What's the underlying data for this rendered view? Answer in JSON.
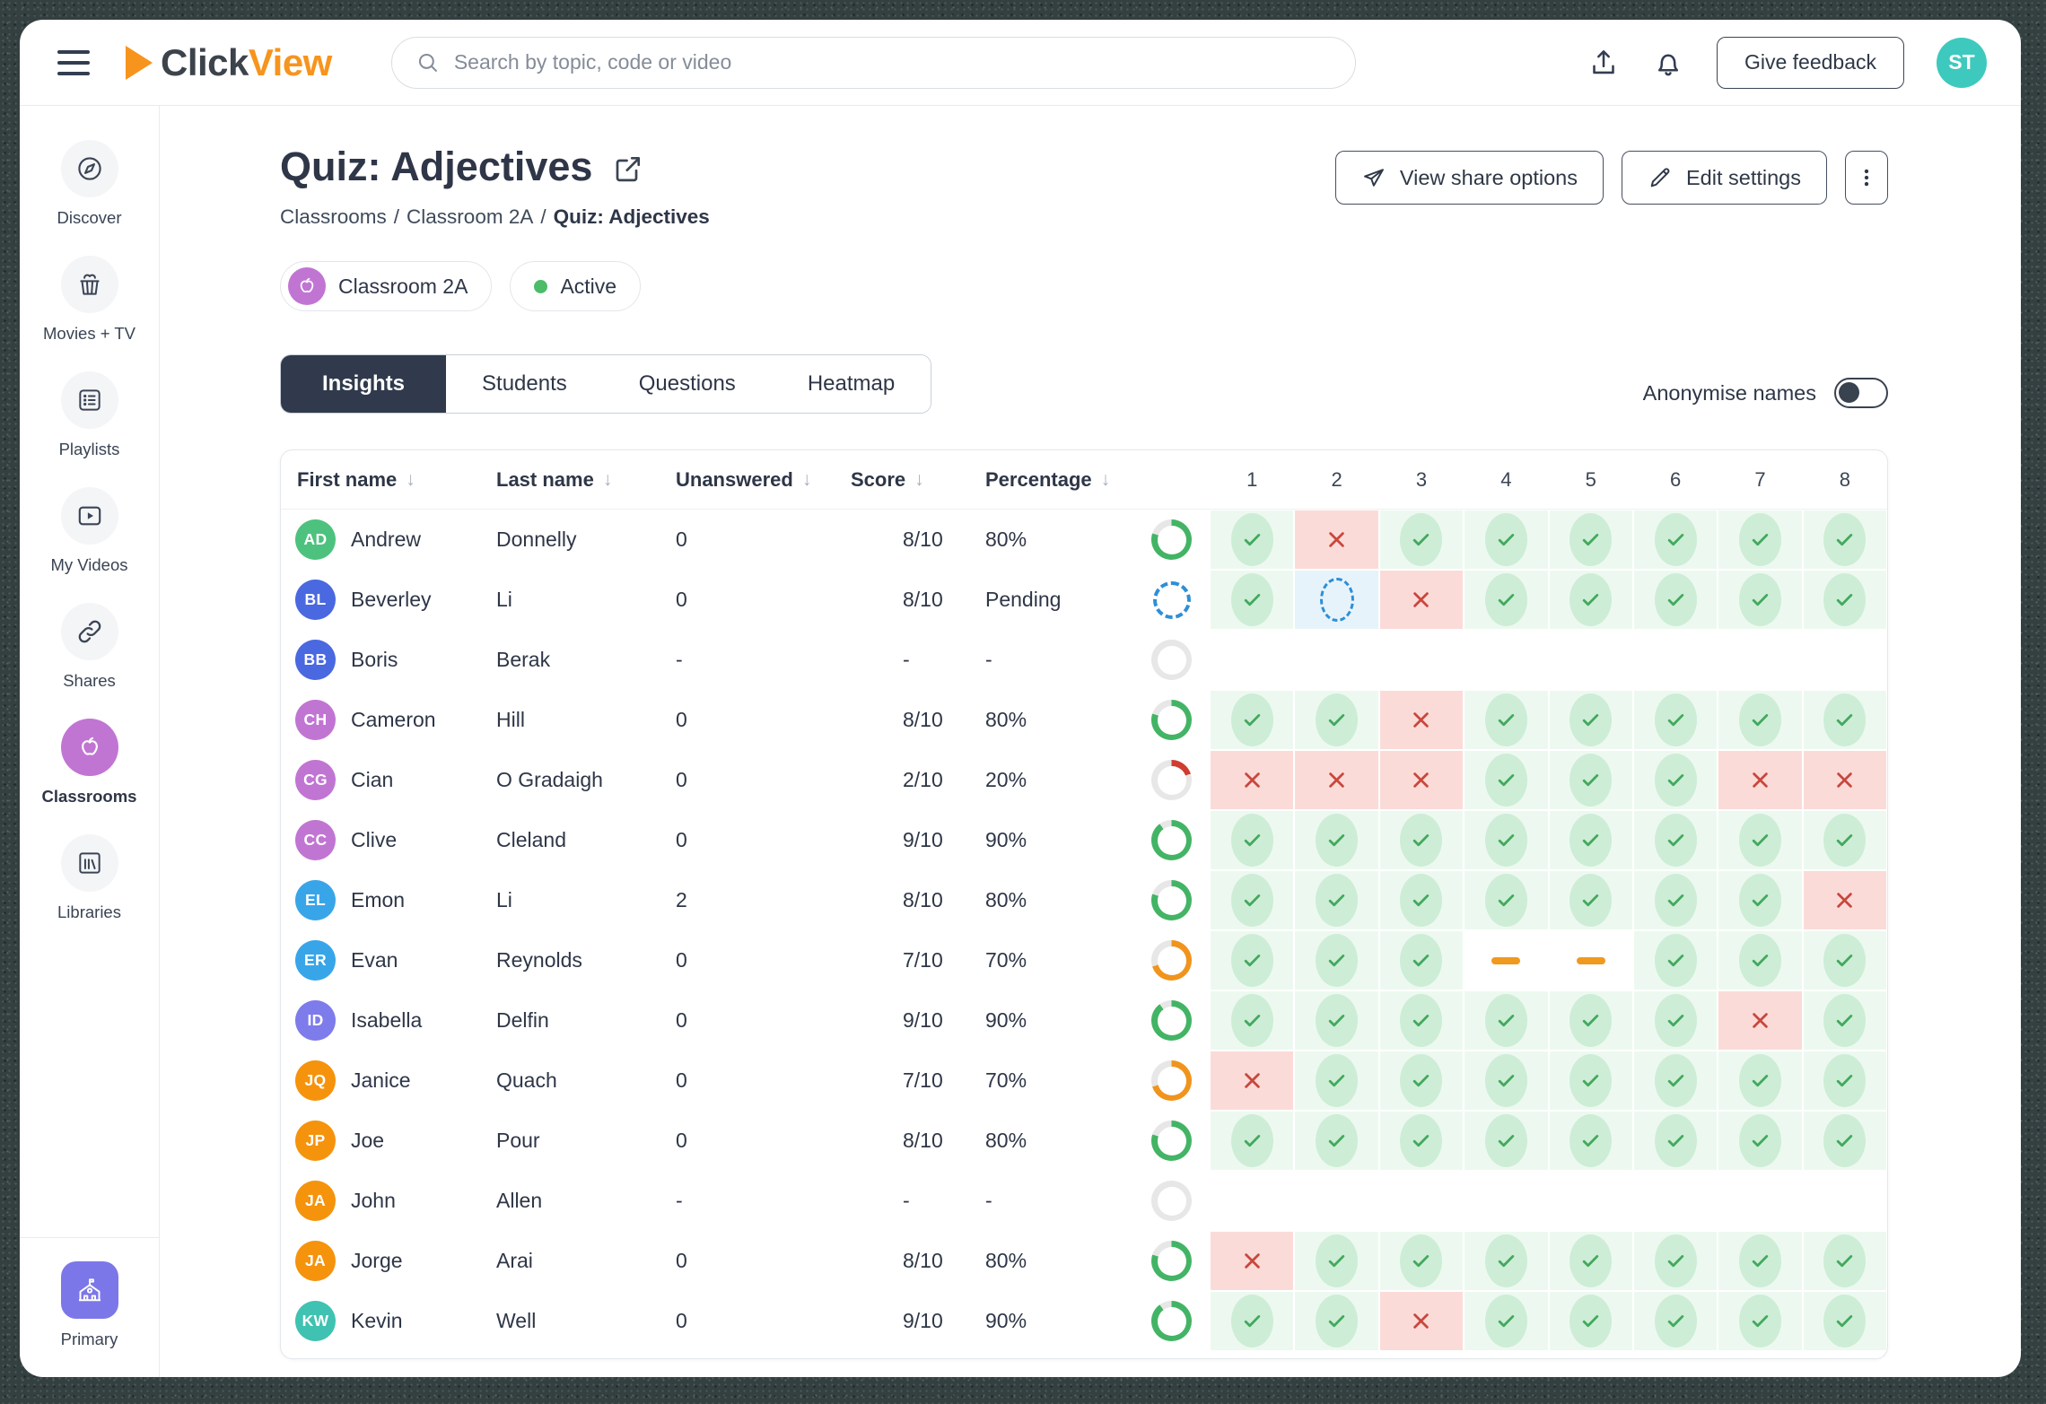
{
  "topbar": {
    "logo_part1": "Click",
    "logo_part2": "View",
    "search_placeholder": "Search by topic, code or video",
    "give_feedback_label": "Give feedback",
    "avatar_initials": "ST"
  },
  "sidebar": {
    "items": [
      {
        "id": "discover",
        "label": "Discover",
        "icon": "compass-icon",
        "active": false
      },
      {
        "id": "movies-tv",
        "label": "Movies + TV",
        "icon": "popcorn-icon",
        "active": false
      },
      {
        "id": "playlists",
        "label": "Playlists",
        "icon": "playlist-icon",
        "active": false
      },
      {
        "id": "my-videos",
        "label": "My Videos",
        "icon": "video-play-icon",
        "active": false
      },
      {
        "id": "shares",
        "label": "Shares",
        "icon": "link-icon",
        "active": false
      },
      {
        "id": "classrooms",
        "label": "Classrooms",
        "icon": "apple-icon",
        "active": true
      },
      {
        "id": "libraries",
        "label": "Libraries",
        "icon": "books-icon",
        "active": false
      }
    ],
    "bottom_label": "Primary"
  },
  "page": {
    "title": "Quiz: Adjectives",
    "breadcrumb": [
      {
        "label": "Classrooms",
        "current": false
      },
      {
        "label": "Classroom 2A",
        "current": false
      },
      {
        "label": "Quiz: Adjectives",
        "current": true
      }
    ],
    "share_button_label": "View share options",
    "edit_button_label": "Edit settings",
    "classroom_chip_label": "Classroom 2A",
    "status_chip_label": "Active",
    "tabs": [
      "Insights",
      "Students",
      "Questions",
      "Heatmap"
    ],
    "active_tab": "Insights",
    "anonymise_label": "Anonymise names",
    "anonymise_on": false
  },
  "table": {
    "columns": [
      "First name",
      "Last name",
      "Unanswered",
      "Score",
      "Percentage"
    ],
    "question_numbers": [
      "1",
      "2",
      "3",
      "4",
      "5",
      "6",
      "7",
      "8"
    ],
    "rows": [
      {
        "initials": "AD",
        "avatar_color": "#4DC27E",
        "first": "Andrew",
        "last": "Donnelly",
        "unanswered": "0",
        "score": "8/10",
        "percentage": "80%",
        "progress": {
          "kind": "ring",
          "pct": 80,
          "color": "#43B465"
        },
        "answers": [
          "correct",
          "incorrect",
          "correct",
          "correct",
          "correct",
          "correct",
          "correct",
          "correct"
        ]
      },
      {
        "initials": "BL",
        "avatar_color": "#4A68E0",
        "first": "Beverley",
        "last": "Li",
        "unanswered": "0",
        "score": "8/10",
        "percentage": "Pending",
        "progress": {
          "kind": "pending"
        },
        "answers": [
          "correct",
          "pending",
          "incorrect",
          "correct",
          "correct",
          "correct",
          "correct",
          "correct"
        ]
      },
      {
        "initials": "BB",
        "avatar_color": "#4A68E0",
        "first": "Boris",
        "last": "Berak",
        "unanswered": "-",
        "score": "-",
        "percentage": "-",
        "progress": {
          "kind": "ring",
          "pct": 0,
          "color": "#43B465"
        },
        "answers": [
          "empty",
          "empty",
          "empty",
          "empty",
          "empty",
          "empty",
          "empty",
          "empty"
        ]
      },
      {
        "initials": "CH",
        "avatar_color": "#C175D3",
        "first": "Cameron",
        "last": "Hill",
        "unanswered": "0",
        "score": "8/10",
        "percentage": "80%",
        "progress": {
          "kind": "ring",
          "pct": 80,
          "color": "#43B465"
        },
        "answers": [
          "correct",
          "correct",
          "incorrect",
          "correct",
          "correct",
          "correct",
          "correct",
          "correct"
        ]
      },
      {
        "initials": "CG",
        "avatar_color": "#C175D3",
        "first": "Cian",
        "last": "O Gradaigh",
        "unanswered": "0",
        "score": "2/10",
        "percentage": "20%",
        "progress": {
          "kind": "ring",
          "pct": 20,
          "color": "#D03C2F"
        },
        "answers": [
          "incorrect",
          "incorrect",
          "incorrect",
          "correct",
          "correct",
          "correct",
          "incorrect",
          "incorrect"
        ]
      },
      {
        "initials": "CC",
        "avatar_color": "#C175D3",
        "first": "Clive",
        "last": "Cleland",
        "unanswered": "0",
        "score": "9/10",
        "percentage": "90%",
        "progress": {
          "kind": "ring",
          "pct": 90,
          "color": "#43B465"
        },
        "answers": [
          "correct",
          "correct",
          "correct",
          "correct",
          "correct",
          "correct",
          "correct",
          "correct"
        ]
      },
      {
        "initials": "EL",
        "avatar_color": "#39A5E9",
        "first": "Emon",
        "last": "Li",
        "unanswered": "2",
        "score": "8/10",
        "percentage": "80%",
        "progress": {
          "kind": "ring",
          "pct": 80,
          "color": "#43B465"
        },
        "answers": [
          "correct",
          "correct",
          "correct",
          "correct",
          "correct",
          "correct",
          "correct",
          "incorrect"
        ]
      },
      {
        "initials": "ER",
        "avatar_color": "#39A5E9",
        "first": "Evan",
        "last": "Reynolds",
        "unanswered": "0",
        "score": "7/10",
        "percentage": "70%",
        "progress": {
          "kind": "ring",
          "pct": 70,
          "color": "#F0941D"
        },
        "answers": [
          "correct",
          "correct",
          "correct",
          "missed",
          "missed",
          "correct",
          "correct",
          "correct"
        ]
      },
      {
        "initials": "ID",
        "avatar_color": "#7E7BEB",
        "first": "Isabella",
        "last": "Delfin",
        "unanswered": "0",
        "score": "9/10",
        "percentage": "90%",
        "progress": {
          "kind": "ring",
          "pct": 90,
          "color": "#43B465"
        },
        "answers": [
          "correct",
          "correct",
          "correct",
          "correct",
          "correct",
          "correct",
          "incorrect",
          "correct"
        ]
      },
      {
        "initials": "JQ",
        "avatar_color": "#F5930D",
        "first": "Janice",
        "last": "Quach",
        "unanswered": "0",
        "score": "7/10",
        "percentage": "70%",
        "progress": {
          "kind": "ring",
          "pct": 70,
          "color": "#F0941D"
        },
        "answers": [
          "incorrect",
          "correct",
          "correct",
          "correct",
          "correct",
          "correct",
          "correct",
          "correct"
        ]
      },
      {
        "initials": "JP",
        "avatar_color": "#F5930D",
        "first": "Joe",
        "last": "Pour",
        "unanswered": "0",
        "score": "8/10",
        "percentage": "80%",
        "progress": {
          "kind": "ring",
          "pct": 80,
          "color": "#43B465"
        },
        "answers": [
          "correct",
          "correct",
          "correct",
          "correct",
          "correct",
          "correct",
          "correct",
          "correct"
        ]
      },
      {
        "initials": "JA",
        "avatar_color": "#F5930D",
        "first": "John",
        "last": "Allen",
        "unanswered": "-",
        "score": "-",
        "percentage": "-",
        "progress": {
          "kind": "ring",
          "pct": 0,
          "color": "#43B465"
        },
        "answers": [
          "empty",
          "empty",
          "empty",
          "empty",
          "empty",
          "empty",
          "empty",
          "empty"
        ]
      },
      {
        "initials": "JA",
        "avatar_color": "#F5930D",
        "first": "Jorge",
        "last": "Arai",
        "unanswered": "0",
        "score": "8/10",
        "percentage": "80%",
        "progress": {
          "kind": "ring",
          "pct": 80,
          "color": "#43B465"
        },
        "answers": [
          "incorrect",
          "correct",
          "correct",
          "correct",
          "correct",
          "correct",
          "correct",
          "correct"
        ]
      },
      {
        "initials": "KW",
        "avatar_color": "#3FC2B1",
        "first": "Kevin",
        "last": "Well",
        "unanswered": "0",
        "score": "9/10",
        "percentage": "90%",
        "progress": {
          "kind": "ring",
          "pct": 90,
          "color": "#43B465"
        },
        "answers": [
          "correct",
          "correct",
          "incorrect",
          "correct",
          "correct",
          "correct",
          "correct",
          "correct"
        ]
      }
    ]
  },
  "colors": {
    "brand_orange": "#F7941D",
    "dark_navy": "#333D51",
    "correct_green": "#43B465",
    "correct_cell_bg": "#EDF9F0",
    "incorrect_red": "#C8473D",
    "incorrect_cell_bg": "#FBDBD8",
    "pending_blue": "#2E8FD6",
    "pending_cell_bg": "#E7F3FB",
    "missed_orange": "#F0991F",
    "ring_gray": "#E7E7E7",
    "user_avatar_teal": "#3EC9BE",
    "classroom_purple": "#C175D3",
    "primary_purple": "#7C77E9",
    "active_dot_green": "#4CBB6A"
  }
}
